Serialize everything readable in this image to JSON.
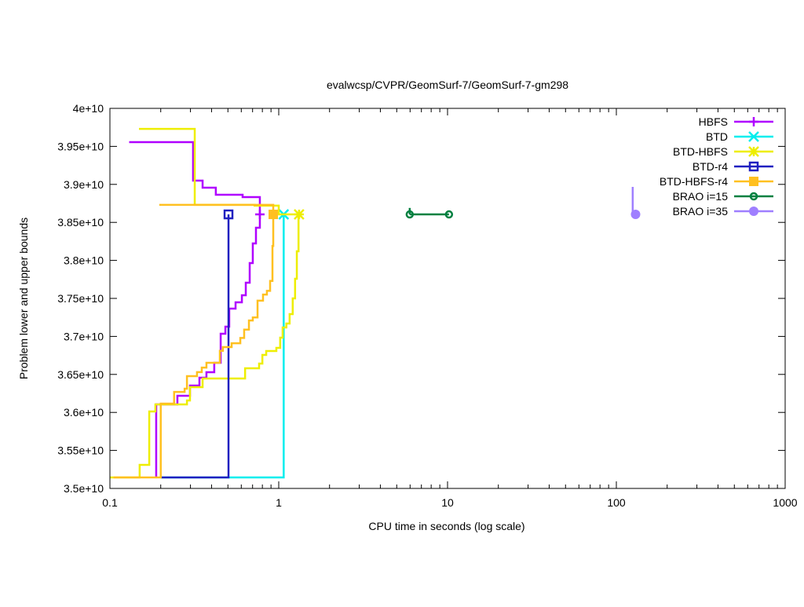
{
  "chart_data": {
    "type": "line",
    "title": "evalwcsp/CVPR/GeomSurf-7/GeomSurf-7-gm298",
    "xlabel": "CPU time in seconds (log scale)",
    "ylabel": "Problem lower and upper bounds",
    "x_scale": "log",
    "xlim": [
      0.1,
      1000
    ],
    "ylim": [
      35000000000.0,
      40000000000.0
    ],
    "x_ticks": [
      {
        "v": 0.1,
        "label": "0.1"
      },
      {
        "v": 1,
        "label": "1"
      },
      {
        "v": 10,
        "label": "10"
      },
      {
        "v": 100,
        "label": "100"
      },
      {
        "v": 1000,
        "label": "1000"
      }
    ],
    "y_ticks": [
      {
        "v": 35000000000.0,
        "label": "3.5e+10"
      },
      {
        "v": 35500000000.0,
        "label": "3.55e+10"
      },
      {
        "v": 36000000000.0,
        "label": "3.6e+10"
      },
      {
        "v": 36500000000.0,
        "label": "3.65e+10"
      },
      {
        "v": 37000000000.0,
        "label": "3.7e+10"
      },
      {
        "v": 37500000000.0,
        "label": "3.75e+10"
      },
      {
        "v": 38000000000.0,
        "label": "3.8e+10"
      },
      {
        "v": 38500000000.0,
        "label": "3.85e+10"
      },
      {
        "v": 39000000000.0,
        "label": "3.9e+10"
      },
      {
        "v": 39500000000.0,
        "label": "3.95e+10"
      },
      {
        "v": 40000000000.0,
        "label": "4e+10"
      }
    ],
    "grid": false,
    "legend_position": "top-right",
    "series": [
      {
        "name": "HBFS",
        "color": "#b000ff",
        "marker": "plus",
        "upper": [
          [
            0.13,
            39556000000.0
          ],
          [
            0.311,
            39050000000.0
          ],
          [
            0.354,
            38957000000.0
          ],
          [
            0.424,
            38864000000.0
          ],
          [
            0.611,
            38832000000.0
          ],
          [
            0.773,
            38605000000.0
          ]
        ],
        "lower": [
          [
            0.188,
            35145000000.0
          ],
          [
            0.188,
            36105000000.0
          ],
          [
            0.251,
            36219000000.0
          ],
          [
            0.298,
            36353000000.0
          ],
          [
            0.339,
            36457000000.0
          ],
          [
            0.373,
            36529000000.0
          ],
          [
            0.415,
            36653000000.0
          ],
          [
            0.453,
            37035000000.0
          ],
          [
            0.483,
            37128000000.0
          ],
          [
            0.509,
            37366000000.0
          ],
          [
            0.555,
            37448000000.0
          ],
          [
            0.605,
            37541000000.0
          ],
          [
            0.638,
            37707000000.0
          ],
          [
            0.673,
            37965000000.0
          ],
          [
            0.702,
            38223000000.0
          ],
          [
            0.733,
            38430000000.0
          ],
          [
            0.773,
            38605000000.0
          ]
        ],
        "final": [
          0.773,
          38605000000.0
        ]
      },
      {
        "name": "BTD",
        "color": "#00eeee",
        "marker": "cross",
        "upper": [],
        "lower": [
          [
            0.2,
            35145000000.0
          ],
          [
            1.07,
            38605000000.0
          ]
        ],
        "final": [
          1.07,
          38605000000.0
        ]
      },
      {
        "name": "BTD-HBFS",
        "color": "#eeee00",
        "marker": "star",
        "upper": [
          [
            0.1486,
            39730000000.0
          ],
          [
            0.318,
            38730000000.0
          ],
          [
            0.72,
            38720000000.0
          ],
          [
            1.0,
            38605000000.0
          ],
          [
            1.31,
            38605000000.0
          ]
        ],
        "lower": [
          [
            0.1,
            35145000000.0
          ],
          [
            0.15,
            35310000000.0
          ],
          [
            0.171,
            36012000000.0
          ],
          [
            0.186,
            36105000000.0
          ],
          [
            0.286,
            36157000000.0
          ],
          [
            0.298,
            36333000000.0
          ],
          [
            0.354,
            36446000000.0
          ],
          [
            0.632,
            36580000000.0
          ],
          [
            0.765,
            36643000000.0
          ],
          [
            0.8,
            36756000000.0
          ],
          [
            0.843,
            36808000000.0
          ],
          [
            0.968,
            36849000000.0
          ],
          [
            1.02,
            36983000000.0
          ],
          [
            1.055,
            37118000000.0
          ],
          [
            1.11,
            37169000000.0
          ],
          [
            1.16,
            37293000000.0
          ],
          [
            1.21,
            37500000000.0
          ],
          [
            1.25,
            37758000000.0
          ],
          [
            1.28,
            38120000000.0
          ],
          [
            1.31,
            38605000000.0
          ]
        ],
        "final": [
          1.32,
          38605000000.0
        ]
      },
      {
        "name": "BTD-r4",
        "color": "#2020c0",
        "marker": "square-open",
        "upper": [],
        "lower": [
          [
            0.2,
            35145000000.0
          ],
          [
            0.504,
            38605000000.0
          ]
        ],
        "final": [
          0.504,
          38605000000.0
        ]
      },
      {
        "name": "BTD-HBFS-r4",
        "color": "#ffc020",
        "marker": "square-filled",
        "upper": [
          [
            0.196,
            38730000000.0
          ],
          [
            0.928,
            38605000000.0
          ]
        ],
        "lower": [
          [
            0.105,
            35145000000.0
          ],
          [
            0.2,
            36116000000.0
          ],
          [
            0.24,
            36270000000.0
          ],
          [
            0.277,
            36312000000.0
          ],
          [
            0.286,
            36477000000.0
          ],
          [
            0.328,
            36530000000.0
          ],
          [
            0.35,
            36590000000.0
          ],
          [
            0.373,
            36653000000.0
          ],
          [
            0.448,
            36810000000.0
          ],
          [
            0.467,
            36860000000.0
          ],
          [
            0.526,
            36910000000.0
          ],
          [
            0.592,
            36980000000.0
          ],
          [
            0.624,
            37090000000.0
          ],
          [
            0.666,
            37210000000.0
          ],
          [
            0.702,
            37250000000.0
          ],
          [
            0.749,
            37470000000.0
          ],
          [
            0.807,
            37550000000.0
          ],
          [
            0.851,
            37600000000.0
          ],
          [
            0.889,
            37730000000.0
          ],
          [
            0.918,
            38190000000.0
          ],
          [
            0.928,
            38605000000.0
          ]
        ],
        "final": [
          0.928,
          38605000000.0
        ]
      },
      {
        "name": "BRAO i=15",
        "color": "#008040",
        "marker": "circle-open",
        "upper": [
          [
            5.97,
            38690000000.0
          ],
          [
            5.97,
            38605000000.0
          ]
        ],
        "lower": [
          [
            5.97,
            38605000000.0
          ],
          [
            10.2,
            38605000000.0
          ]
        ],
        "final": [
          10.2,
          38605000000.0
        ],
        "extra_markers": [
          [
            5.97,
            38605000000.0
          ]
        ]
      },
      {
        "name": "BRAO i=35",
        "color": "#9f7fff",
        "marker": "circle-filled",
        "upper": [
          [
            125,
            38967000000.0
          ],
          [
            125,
            38605000000.0
          ]
        ],
        "lower": [
          [
            125,
            38605000000.0
          ],
          [
            130,
            38605000000.0
          ]
        ],
        "final": [
          130,
          38605000000.0
        ]
      }
    ]
  }
}
